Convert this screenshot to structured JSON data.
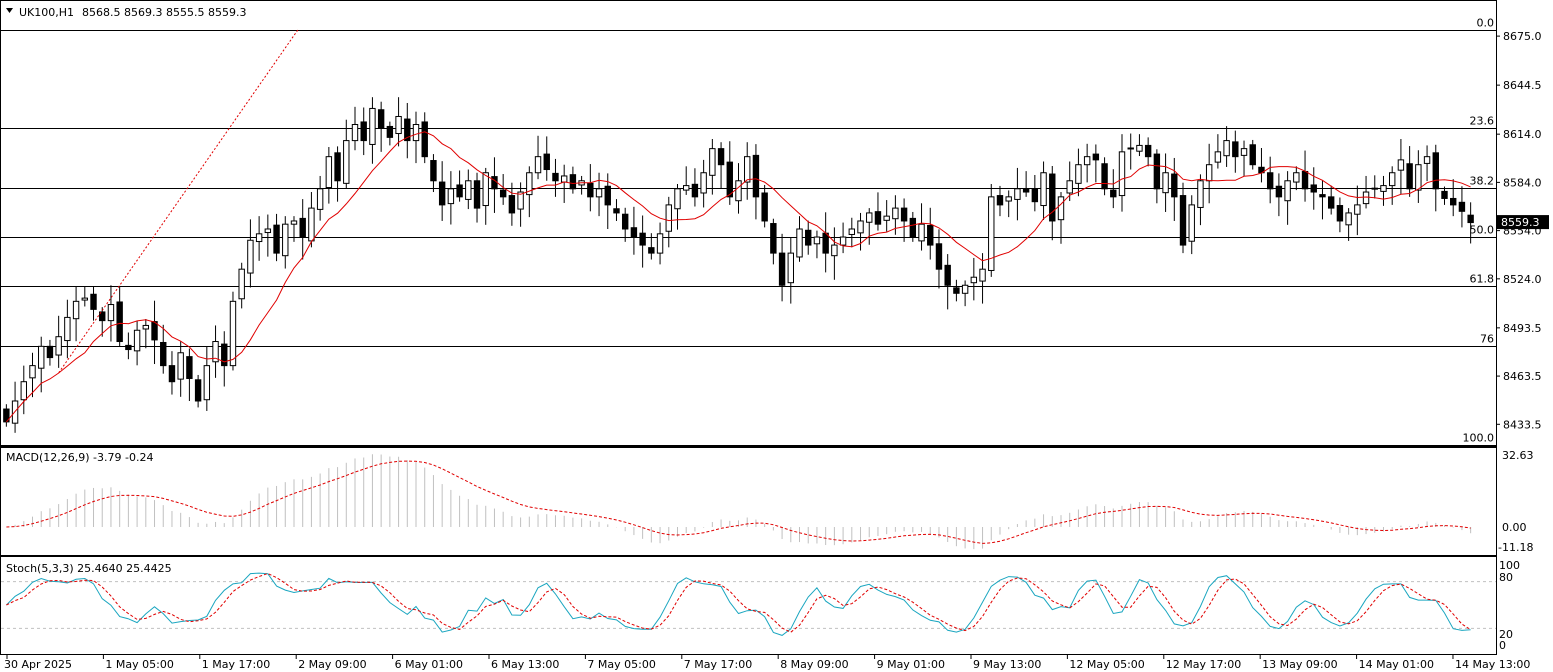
{
  "header": {
    "symbol_tf": "UK100,H1",
    "ohlc": "8568.5 8569.3 8555.5 8559.3"
  },
  "price_axis": {
    "ticks": [
      "8675.0",
      "8644.5",
      "8614.0",
      "8584.0",
      "8554.0",
      "8524.0",
      "8493.5",
      "8463.5",
      "8433.5"
    ],
    "current_price": "8559.3"
  },
  "fibonacci": {
    "levels": [
      "0.0",
      "23.6",
      "38.2",
      "50.0",
      "61.8",
      "76",
      "100.0"
    ],
    "prices": [
      8679.0,
      8618.1,
      8580.4,
      8549.9,
      8519.4,
      8482.1,
      8420.5
    ]
  },
  "macd": {
    "label": "MACD(12,26,9) -3.79 -0.24",
    "axis": [
      "32.63",
      "0.00",
      "-11.18"
    ]
  },
  "stoch": {
    "label": "Stoch(5,3,3) 25.4640 25.4425",
    "axis": [
      "100",
      "80",
      "20",
      "0"
    ]
  },
  "time_axis": [
    "30 Apr 2025",
    "1 May 05:00",
    "1 May 17:00",
    "2 May 09:00",
    "6 May 01:00",
    "6 May 13:00",
    "7 May 05:00",
    "7 May 17:00",
    "8 May 09:00",
    "9 May 01:00",
    "9 May 13:00",
    "12 May 05:00",
    "12 May 17:00",
    "13 May 09:00",
    "14 May 01:00",
    "14 May 13:00"
  ],
  "colors": {
    "ma_line": "#e00000",
    "fib_trend": "#e00000",
    "stoch_main": "#1aa6c0",
    "stoch_signal": "#e00000",
    "macd_hist": "#c0c0c0",
    "macd_signal": "#e00000",
    "candle_up": "#ffffff",
    "candle_down": "#000000"
  },
  "chart_data": {
    "type": "candlestick",
    "symbol": "UK100",
    "timeframe": "H1",
    "ylim": [
      8420,
      8690
    ],
    "closes": [
      8435,
      8448,
      8460,
      8470,
      8482,
      8475,
      8488,
      8500,
      8510,
      8512,
      8505,
      8498,
      8508,
      8485,
      8480,
      8492,
      8495,
      8486,
      8470,
      8460,
      8478,
      8462,
      8448,
      8470,
      8485,
      8470,
      8510,
      8530,
      8548,
      8552,
      8555,
      8540,
      8558,
      8560,
      8550,
      8568,
      8580,
      8600,
      8585,
      8610,
      8620,
      8610,
      8630,
      8618,
      8612,
      8625,
      8610,
      8620,
      8600,
      8585,
      8570,
      8580,
      8575,
      8585,
      8568,
      8590,
      8580,
      8575,
      8565,
      8578,
      8590,
      8600,
      8592,
      8585,
      8588,
      8580,
      8585,
      8575,
      8580,
      8570,
      8565,
      8555,
      8550,
      8545,
      8540,
      8552,
      8570,
      8580,
      8582,
      8575,
      8590,
      8605,
      8595,
      8575,
      8585,
      8600,
      8575,
      8560,
      8540,
      8520,
      8540,
      8555,
      8545,
      8550,
      8540,
      8545,
      8550,
      8555,
      8560,
      8565,
      8558,
      8563,
      8568,
      8560,
      8550,
      8558,
      8545,
      8530,
      8520,
      8515,
      8520,
      8525,
      8530,
      8575,
      8570,
      8575,
      8580,
      8578,
      8572,
      8590,
      8560,
      8575,
      8585,
      8595,
      8600,
      8598,
      8580,
      8575,
      8603,
      8605,
      8607,
      8600,
      8580,
      8590,
      8575,
      8545,
      8570,
      8585,
      8595,
      8603,
      8610,
      8600,
      8605,
      8595,
      8590,
      8580,
      8575,
      8585,
      8590,
      8580,
      8578,
      8575,
      8568,
      8560,
      8565,
      8570,
      8578,
      8580,
      8582,
      8590,
      8598,
      8580,
      8595,
      8600,
      8580,
      8574,
      8570,
      8566,
      8559
    ]
  }
}
